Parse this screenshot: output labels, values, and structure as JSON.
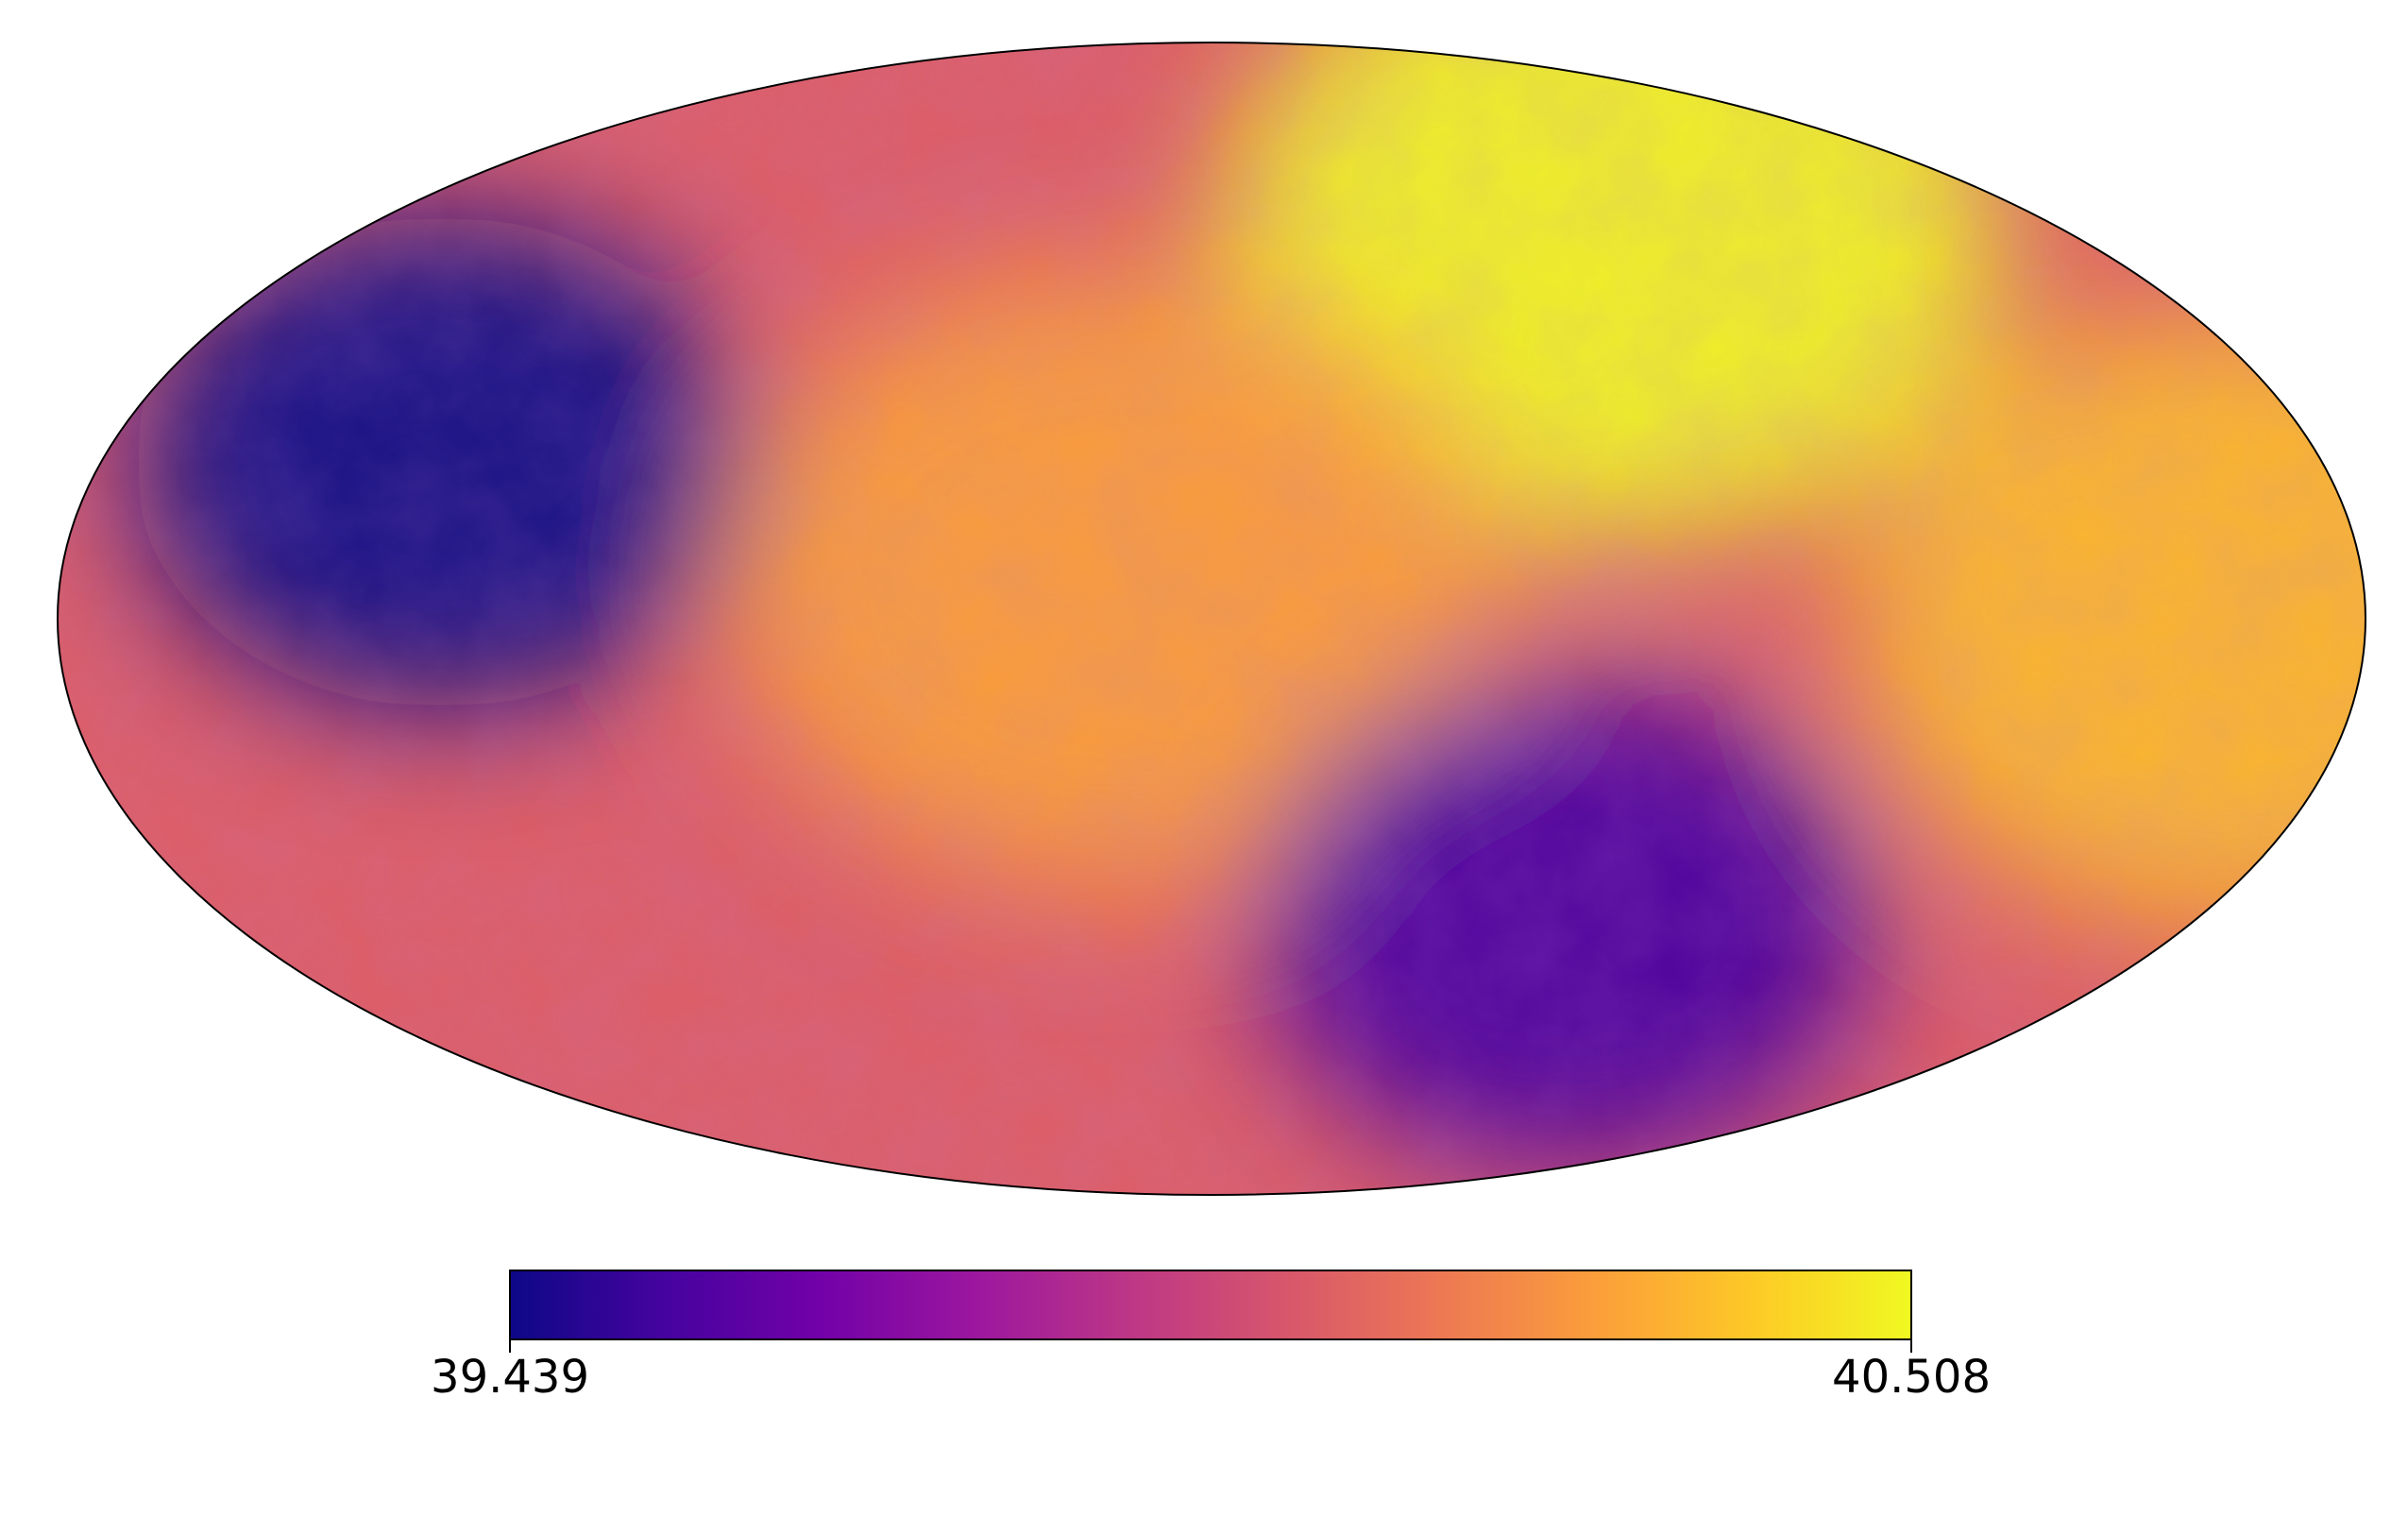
{
  "map": {
    "projection": "mollweide",
    "colormap": "plasma",
    "colormap_stops": [
      "#0d0887",
      "#46039f",
      "#7201a8",
      "#9c179e",
      "#bd3786",
      "#d8576b",
      "#ed7953",
      "#fb9f3a",
      "#fdca26",
      "#f0f921"
    ],
    "features": {
      "cold_spots": [
        {
          "lon_deg": 125,
          "lat_deg": 20,
          "level": 0.0
        },
        {
          "lon_deg": -65,
          "lat_deg": -40,
          "level": 0.12
        }
      ],
      "warm_regions": [
        {
          "lon_deg": -85,
          "lat_deg": 52,
          "level": 1.0
        },
        {
          "lon_deg": 15,
          "lat_deg": 5,
          "level": 0.78
        },
        {
          "lon_deg": -160,
          "lat_deg": 0,
          "level": 0.85
        }
      ],
      "mean_level": 0.58
    }
  },
  "colorbar": {
    "min_label": "39.439",
    "max_label": "40.508",
    "min_value": 39.439,
    "max_value": 40.508,
    "orientation": "horizontal"
  }
}
